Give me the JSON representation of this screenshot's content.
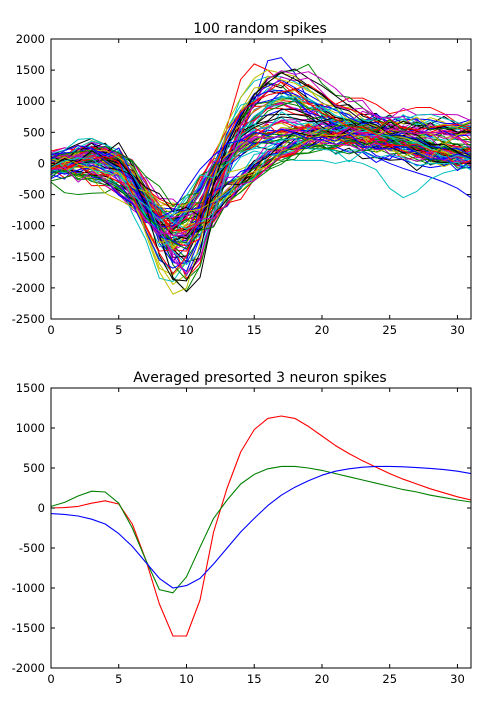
{
  "chart_data": [
    {
      "type": "line",
      "title": "100 random spikes",
      "xlabel": "",
      "ylabel": "",
      "xlim": [
        0,
        31
      ],
      "ylim": [
        -2500,
        2000
      ],
      "xticks": [
        0,
        5,
        10,
        15,
        20,
        25,
        30
      ],
      "yticks": [
        -2500,
        -2000,
        -1500,
        -1000,
        -500,
        0,
        500,
        1000,
        1500,
        2000
      ],
      "grid": false,
      "series_count": 100,
      "colors": [
        "#0000ff",
        "#008000",
        "#ff0000",
        "#00bfbf",
        "#bf00bf",
        "#bfbf00",
        "#000000"
      ],
      "x": [
        0,
        1,
        2,
        3,
        4,
        5,
        6,
        7,
        8,
        9,
        10,
        11,
        12,
        13,
        14,
        15,
        16,
        17,
        18,
        19,
        20,
        21,
        22,
        23,
        24,
        25,
        26,
        27,
        28,
        29,
        30,
        31
      ],
      "series": [
        {
          "values": [
            -150,
            -160,
            -175,
            -195,
            -260,
            -370,
            -550,
            -780,
            -990,
            -1400,
            -1800,
            -1350,
            -700,
            -250,
            400,
            1000,
            1650,
            1700,
            1450,
            1000,
            700,
            500,
            350,
            200,
            100,
            0,
            -80,
            -150,
            -220,
            -300,
            -400,
            -550
          ]
        },
        {
          "values": [
            -300,
            -470,
            -500,
            -480,
            -470,
            -350,
            -700,
            -850,
            -1100,
            -1850,
            -2050,
            -1650,
            -900,
            -200,
            600,
            1100,
            1300,
            1250,
            1050,
            900,
            800,
            700,
            600,
            600,
            550,
            550,
            500,
            450,
            400,
            350,
            300,
            250
          ]
        },
        {
          "values": [
            200,
            250,
            200,
            150,
            100,
            250,
            -100,
            -600,
            -1000,
            -1300,
            -1850,
            -1600,
            -650,
            600,
            1350,
            1600,
            1500,
            1300,
            1100,
            950,
            900,
            950,
            1050,
            1050,
            950,
            800,
            850,
            900,
            900,
            800,
            650,
            600
          ]
        },
        {
          "values": [
            50,
            100,
            50,
            0,
            0,
            -50,
            -150,
            -550,
            -950,
            -1150,
            -1200,
            -900,
            -500,
            -200,
            100,
            200,
            150,
            100,
            50,
            50,
            50,
            0,
            50,
            0,
            -100,
            -400,
            -550,
            -450,
            -250,
            -150,
            -100,
            -50
          ]
        }
      ],
      "mean_series": [
        {
          "values": [
            0,
            5,
            20,
            60,
            90,
            50,
            -200,
            -650,
            -1200,
            -1600,
            -1600,
            -1150,
            -300,
            250,
            700,
            980,
            1120,
            1150,
            1120,
            1020,
            900,
            780,
            680,
            590,
            510,
            430,
            360,
            300,
            240,
            190,
            140,
            100
          ]
        },
        {
          "values": [
            20,
            70,
            150,
            210,
            200,
            60,
            -250,
            -650,
            -1020,
            -1060,
            -860,
            -490,
            -130,
            100,
            300,
            420,
            490,
            520,
            520,
            500,
            470,
            430,
            390,
            350,
            310,
            270,
            230,
            200,
            160,
            130,
            100,
            75
          ]
        },
        {
          "values": [
            -70,
            -80,
            -100,
            -140,
            -200,
            -320,
            -480,
            -680,
            -880,
            -1000,
            -970,
            -880,
            -700,
            -500,
            -300,
            -130,
            30,
            160,
            260,
            340,
            410,
            460,
            490,
            510,
            520,
            520,
            515,
            505,
            495,
            480,
            460,
            430
          ]
        }
      ]
    },
    {
      "type": "line",
      "title": "Averaged presorted 3 neuron spikes",
      "xlabel": "",
      "ylabel": "",
      "xlim": [
        0,
        31
      ],
      "ylim": [
        -2000,
        1500
      ],
      "xticks": [
        0,
        5,
        10,
        15,
        20,
        25,
        30
      ],
      "yticks": [
        -2000,
        -1500,
        -1000,
        -500,
        0,
        500,
        1000,
        1500
      ],
      "grid": false,
      "x": [
        0,
        1,
        2,
        3,
        4,
        5,
        6,
        7,
        8,
        9,
        10,
        11,
        12,
        13,
        14,
        15,
        16,
        17,
        18,
        19,
        20,
        21,
        22,
        23,
        24,
        25,
        26,
        27,
        28,
        29,
        30,
        31
      ],
      "series": [
        {
          "color": "#ff0000",
          "values": [
            0,
            5,
            20,
            60,
            90,
            50,
            -200,
            -650,
            -1200,
            -1600,
            -1600,
            -1150,
            -300,
            250,
            700,
            980,
            1120,
            1150,
            1120,
            1020,
            900,
            780,
            680,
            590,
            510,
            430,
            360,
            300,
            240,
            190,
            140,
            100
          ]
        },
        {
          "color": "#008000",
          "values": [
            20,
            70,
            150,
            210,
            200,
            60,
            -250,
            -650,
            -1020,
            -1060,
            -860,
            -490,
            -130,
            100,
            300,
            420,
            490,
            520,
            520,
            500,
            470,
            430,
            390,
            350,
            310,
            270,
            230,
            200,
            160,
            130,
            100,
            75
          ]
        },
        {
          "color": "#0000ff",
          "values": [
            -70,
            -80,
            -100,
            -140,
            -200,
            -320,
            -480,
            -680,
            -880,
            -1000,
            -970,
            -880,
            -700,
            -500,
            -300,
            -130,
            30,
            160,
            260,
            340,
            410,
            460,
            490,
            510,
            520,
            520,
            515,
            505,
            495,
            480,
            460,
            430
          ]
        }
      ]
    }
  ]
}
